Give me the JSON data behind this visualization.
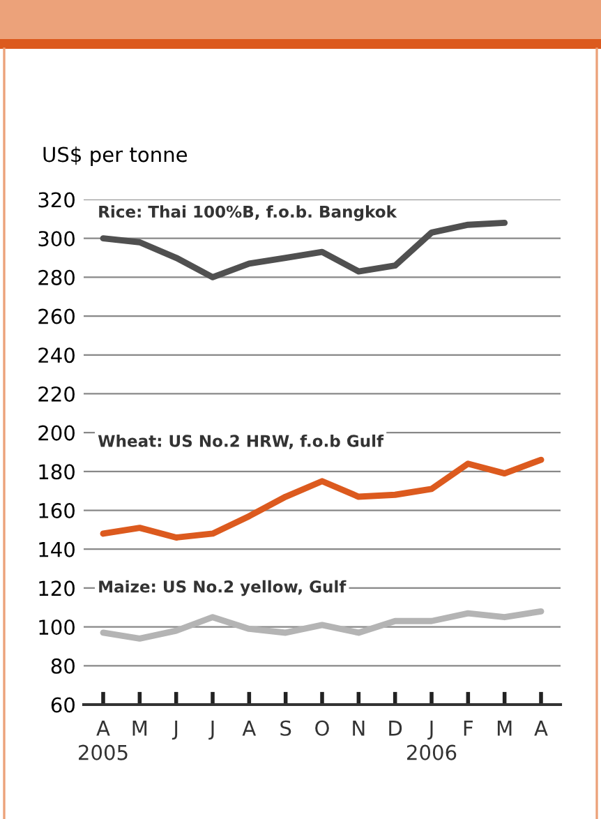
{
  "chart_data": {
    "type": "line",
    "ylabel": "US$ per tonne",
    "categories": [
      "A\n2005",
      "M",
      "J",
      "J",
      "A",
      "S",
      "O",
      "N",
      "D",
      "J\n2006",
      "F",
      "M",
      "A"
    ],
    "series": [
      {
        "name": "Rice: Thai 100%B, f.o.b. Bangkok",
        "color": "#505050",
        "values": [
          300,
          298,
          290,
          280,
          287,
          290,
          293,
          283,
          286,
          303,
          307,
          308,
          null
        ]
      },
      {
        "name": "Wheat: US No.2 HRW, f.o.b Gulf",
        "color": "#dc5a1e",
        "values": [
          148,
          151,
          146,
          148,
          157,
          167,
          175,
          167,
          168,
          171,
          184,
          179,
          186
        ]
      },
      {
        "name": "Maize: US No.2 yellow, Gulf",
        "color": "#b4b4b4",
        "values": [
          97,
          94,
          98,
          105,
          99,
          97,
          101,
          97,
          103,
          103,
          107,
          105,
          108
        ]
      }
    ],
    "ylim": [
      60,
      320
    ],
    "yticks": [
      60,
      80,
      100,
      120,
      140,
      160,
      180,
      200,
      220,
      240,
      260,
      280,
      300,
      320
    ],
    "grid": "y",
    "marker": "none",
    "line_style": "solid"
  }
}
